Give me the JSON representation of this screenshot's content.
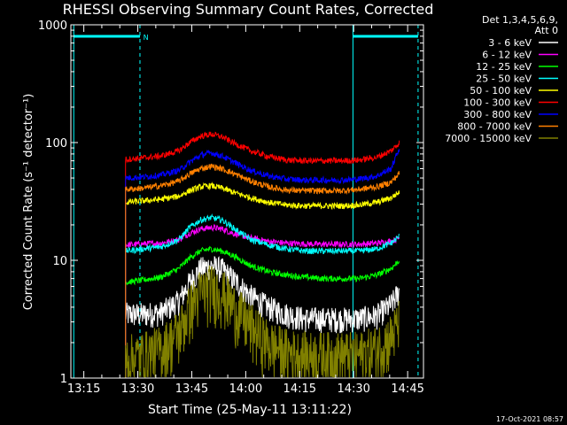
{
  "chart_data": {
    "type": "line",
    "title": "RHESSI Observing Summary Count Rates, Corrected",
    "xlabel": "Start Time (25-May-11 13:11:22)",
    "ylabel": "Corrected Count Rate (s⁻¹ detector⁻¹)",
    "x_unit": "minutes after 13:11:22",
    "xlim": [
      0,
      98
    ],
    "ylim": [
      1,
      1000
    ],
    "yscale": "log",
    "x_ticks": [
      {
        "label": "13:15",
        "value": 3.6
      },
      {
        "label": "13:30",
        "value": 18.6
      },
      {
        "label": "13:45",
        "value": 33.6
      },
      {
        "label": "14:00",
        "value": 48.6
      },
      {
        "label": "14:15",
        "value": 63.6
      },
      {
        "label": "14:30",
        "value": 78.6
      },
      {
        "label": "14:45",
        "value": 93.6
      }
    ],
    "y_ticks": [
      {
        "label": "1",
        "value": 1
      },
      {
        "label": "10",
        "value": 10
      },
      {
        "label": "100",
        "value": 100
      },
      {
        "label": "1000",
        "value": 1000
      }
    ],
    "legend_header": [
      "Det 1,3,4,5,6,9,",
      "Att 0"
    ],
    "legend_placement": "right",
    "data_start": 15.2,
    "data_end": 91.3,
    "series": [
      {
        "name": "3 - 6 keV",
        "color": "#ffffff",
        "x": [
          15.2,
          20,
          25,
          30,
          33,
          36,
          39,
          42,
          45,
          50,
          55,
          60,
          65,
          70,
          75,
          80,
          85,
          89,
          91.3
        ],
        "y": [
          3.5,
          3.5,
          3.6,
          4.5,
          6.5,
          8.5,
          9,
          8.4,
          7,
          5,
          4,
          3.5,
          3.2,
          3.2,
          3.2,
          3.2,
          3.4,
          4.2,
          5.5
        ]
      },
      {
        "name": "6 - 12 keV",
        "color": "#ff00ff",
        "x": [
          15.2,
          20,
          25,
          30,
          33,
          36,
          39,
          42,
          45,
          50,
          55,
          60,
          65,
          70,
          75,
          80,
          85,
          89,
          91.3
        ],
        "y": [
          13.5,
          13.8,
          14,
          15,
          17,
          18.5,
          19,
          18.5,
          17,
          15.5,
          14.5,
          14,
          13.8,
          13.7,
          13.7,
          13.7,
          14,
          14.5,
          15.5
        ]
      },
      {
        "name": "12 - 25 keV",
        "color": "#00ff00",
        "x": [
          15.2,
          20,
          25,
          30,
          33,
          36,
          39,
          42,
          45,
          50,
          55,
          60,
          65,
          70,
          75,
          80,
          85,
          89,
          91.3
        ],
        "y": [
          6.5,
          6.8,
          7.2,
          8.5,
          10.5,
          12,
          12.5,
          12,
          11,
          9,
          8,
          7.5,
          7.2,
          7,
          7,
          7,
          7.5,
          8.5,
          10
        ]
      },
      {
        "name": "25 - 50 keV",
        "color": "#00ffff",
        "x": [
          15.2,
          20,
          25,
          30,
          33,
          36,
          39,
          42,
          45,
          50,
          55,
          60,
          65,
          70,
          75,
          80,
          85,
          89,
          91.3
        ],
        "y": [
          12,
          12.5,
          13,
          15,
          19,
          22,
          23,
          22,
          19,
          15,
          13.5,
          12.5,
          12,
          12,
          12,
          12,
          12.5,
          14,
          16
        ]
      },
      {
        "name": "50 - 100 keV",
        "color": "#ffff00",
        "x": [
          15.2,
          20,
          25,
          30,
          33,
          36,
          39,
          42,
          45,
          50,
          55,
          60,
          65,
          70,
          75,
          80,
          85,
          89,
          91.3
        ],
        "y": [
          31,
          32,
          33,
          35,
          39,
          42,
          43,
          41,
          38,
          34,
          31,
          29.5,
          29,
          29,
          29,
          29.5,
          31,
          34,
          38
        ]
      },
      {
        "name": "100 - 300 keV",
        "color": "#ff0000",
        "x": [
          15.2,
          20,
          25,
          30,
          33,
          36,
          39,
          42,
          45,
          50,
          55,
          60,
          65,
          70,
          75,
          80,
          85,
          89,
          91.3
        ],
        "y": [
          72,
          74,
          77,
          85,
          100,
          113,
          118,
          112,
          100,
          85,
          76,
          71,
          70,
          70,
          70,
          71,
          75,
          85,
          100
        ]
      },
      {
        "name": "300 - 800 keV",
        "color": "#0000ff",
        "x": [
          15.2,
          20,
          25,
          30,
          33,
          36,
          39,
          42,
          45,
          50,
          55,
          60,
          65,
          70,
          75,
          80,
          85,
          89,
          91.3
        ],
        "y": [
          50,
          51,
          53,
          58,
          68,
          78,
          82,
          77,
          69,
          58,
          52,
          49,
          48,
          48,
          48,
          49,
          52,
          60,
          90
        ]
      },
      {
        "name": "800 - 7000 keV",
        "color": "#ff8000",
        "x": [
          15.2,
          20,
          25,
          30,
          33,
          36,
          39,
          42,
          45,
          50,
          55,
          60,
          65,
          70,
          75,
          80,
          85,
          89,
          91.3
        ],
        "y": [
          40,
          41,
          43,
          47,
          54,
          60,
          63,
          60,
          55,
          47,
          42,
          39.5,
          39,
          39,
          39,
          40,
          42,
          46,
          55
        ]
      },
      {
        "name": "7000 - 15000 keV",
        "color": "#808000",
        "x": [
          15.2,
          20,
          25,
          30,
          33,
          36,
          39,
          42,
          45,
          50,
          55,
          60,
          65,
          70,
          75,
          80,
          85,
          89,
          91.3
        ],
        "y": [
          1.5,
          1.6,
          1.8,
          2.5,
          4,
          5.5,
          6,
          5.5,
          4.2,
          2.8,
          2,
          1.7,
          1.6,
          1.6,
          1.6,
          1.6,
          1.8,
          2.3,
          3
        ]
      }
    ],
    "markers": {
      "color": "#00ffff",
      "solid_lines": [
        0.8,
        78.4
      ],
      "dashed_lines": [
        19.2,
        96.5
      ],
      "top_bars": [
        [
          0.8,
          19.2
        ],
        [
          78.4,
          96.5
        ]
      ],
      "labels": [
        {
          "text": "N",
          "x": 19.6
        }
      ]
    },
    "grid": false
  },
  "footer": {
    "timestamp": "17-Oct-2021 08:57"
  }
}
